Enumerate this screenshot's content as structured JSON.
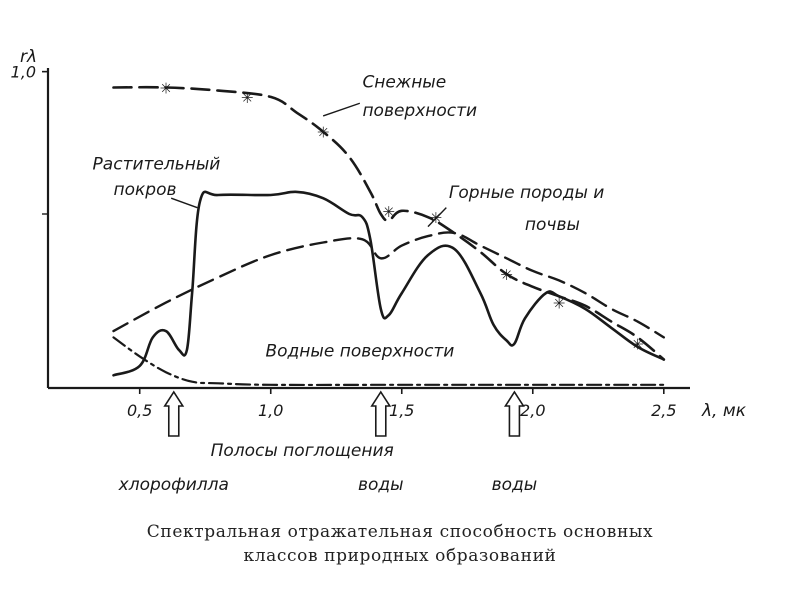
{
  "chart_data": {
    "type": "line",
    "ylabel": "rλ",
    "xlabel": "λ, мк",
    "xlim": [
      0.15,
      2.6
    ],
    "ylim": [
      0,
      1.1
    ],
    "x_ticks": [
      0.5,
      1.0,
      1.5,
      2.0,
      2.5
    ],
    "x_tick_labels": [
      "0,5",
      "1,0",
      "1,5",
      "2,0",
      "2,5"
    ],
    "y_ticks": [
      1.0
    ],
    "y_tick_labels": [
      "1,0"
    ],
    "grid": false,
    "legend": "none",
    "series": [
      {
        "name": "Снежные поверхности",
        "style": "dash-star",
        "x": [
          0.4,
          0.6,
          0.8,
          1.0,
          1.1,
          1.2,
          1.3,
          1.38,
          1.42,
          1.45,
          1.5,
          1.6,
          1.7,
          1.8,
          1.9,
          2.0,
          2.1,
          2.2,
          2.3,
          2.4,
          2.5
        ],
        "y": [
          0.95,
          0.95,
          0.94,
          0.92,
          0.87,
          0.81,
          0.73,
          0.62,
          0.55,
          0.53,
          0.56,
          0.54,
          0.49,
          0.43,
          0.36,
          0.32,
          0.29,
          0.26,
          0.21,
          0.16,
          0.09
        ]
      },
      {
        "name": "Растительный покров",
        "style": "solid",
        "x": [
          0.4,
          0.5,
          0.55,
          0.6,
          0.65,
          0.68,
          0.7,
          0.73,
          0.8,
          1.0,
          1.1,
          1.2,
          1.3,
          1.35,
          1.38,
          1.42,
          1.45,
          1.5,
          1.6,
          1.7,
          1.8,
          1.85,
          1.9,
          1.93,
          1.97,
          2.05,
          2.1,
          2.2,
          2.3,
          2.4,
          2.5
        ],
        "y": [
          0.04,
          0.07,
          0.16,
          0.18,
          0.12,
          0.12,
          0.3,
          0.59,
          0.61,
          0.61,
          0.62,
          0.6,
          0.55,
          0.54,
          0.47,
          0.25,
          0.23,
          0.3,
          0.42,
          0.44,
          0.3,
          0.2,
          0.15,
          0.14,
          0.22,
          0.3,
          0.29,
          0.25,
          0.19,
          0.13,
          0.09
        ]
      },
      {
        "name": "Горные породы и почвы",
        "style": "dashed",
        "x": [
          0.4,
          0.6,
          0.8,
          1.0,
          1.2,
          1.35,
          1.42,
          1.5,
          1.6,
          1.7,
          1.8,
          1.9,
          2.0,
          2.1,
          2.2,
          2.3,
          2.4,
          2.5
        ],
        "y": [
          0.18,
          0.27,
          0.35,
          0.42,
          0.46,
          0.47,
          0.41,
          0.45,
          0.48,
          0.49,
          0.45,
          0.41,
          0.37,
          0.34,
          0.3,
          0.25,
          0.21,
          0.16
        ]
      },
      {
        "name": "Водные поверхности",
        "style": "dash-dot",
        "x": [
          0.4,
          0.5,
          0.6,
          0.7,
          0.8,
          1.0,
          1.5,
          2.0,
          2.5
        ],
        "y": [
          0.16,
          0.1,
          0.05,
          0.02,
          0.015,
          0.01,
          0.01,
          0.01,
          0.01
        ]
      }
    ],
    "star_markers": {
      "x": [
        0.6,
        0.91,
        1.2,
        1.45,
        1.63,
        1.9,
        2.1,
        2.4
      ],
      "y": [
        0.95,
        0.92,
        0.81,
        0.56,
        0.54,
        0.36,
        0.27,
        0.14
      ]
    },
    "annotations": [
      {
        "text": "Снежные",
        "x": 1.35,
        "y": 0.95
      },
      {
        "text": "поверхности",
        "x": 1.35,
        "y": 0.86
      },
      {
        "text": "Растительный",
        "x": 0.32,
        "y": 0.69
      },
      {
        "text": "покров",
        "x": 0.4,
        "y": 0.61
      },
      {
        "text": "Горные породы и",
        "x": 1.68,
        "y": 0.6
      },
      {
        "text": "почвы",
        "x": 1.97,
        "y": 0.5
      },
      {
        "text": "Водные поверхности",
        "x": 0.98,
        "y": 0.1
      }
    ],
    "absorption_bands": {
      "arrows_at": [
        0.63,
        1.42,
        1.93
      ],
      "heading": "Полосы поглощения",
      "labels": [
        "хлорофилла",
        "воды",
        "воды"
      ]
    }
  },
  "caption": {
    "line1": "Спектральная отражательная способность основных",
    "line2": "классов природных образований"
  }
}
